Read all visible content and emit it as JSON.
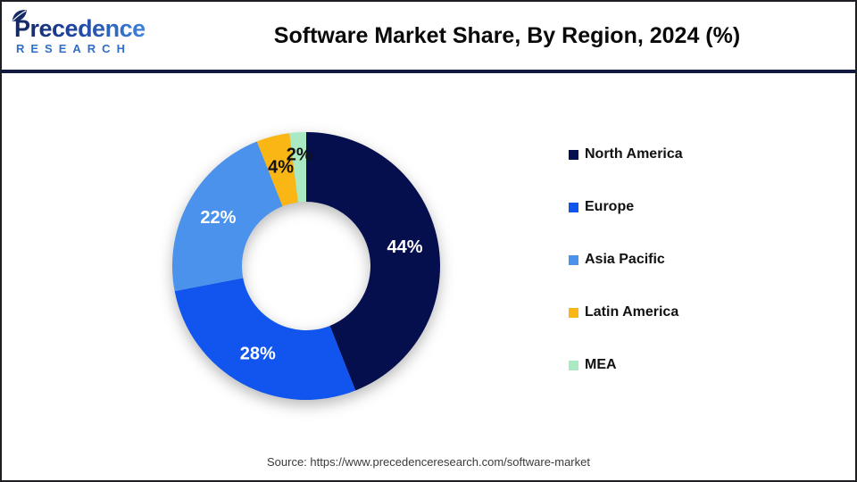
{
  "header": {
    "logo": {
      "name": "Precedence",
      "subtitle": "RESEARCH"
    },
    "title": "Software Market Share, By Region, 2024 (%)"
  },
  "chart_data": {
    "type": "pie",
    "variant": "donut",
    "title": "Software Market Share, By Region, 2024 (%)",
    "categories": [
      "North America",
      "Europe",
      "Asia Pacific",
      "Latin America",
      "MEA"
    ],
    "values": [
      44,
      28,
      22,
      4,
      2
    ],
    "unit": "%",
    "data_labels": [
      "44%",
      "28%",
      "22%",
      "4%",
      "2%"
    ],
    "colors": [
      "#050f4e",
      "#1155ee",
      "#4b92ec",
      "#f9b615",
      "#a9eac3"
    ],
    "label_colors": [
      "#ffffff",
      "#ffffff",
      "#ffffff",
      "#111111",
      "#111111"
    ],
    "label_radius": [
      0.75,
      0.75,
      0.75,
      0.76,
      0.83
    ],
    "start_angle_deg": 0,
    "direction": "clockwise",
    "inner_radius_ratio": 0.48,
    "legend_position": "right",
    "grid": false
  },
  "footer": {
    "source": "Source: https://www.precedenceresearch.com/software-market"
  }
}
